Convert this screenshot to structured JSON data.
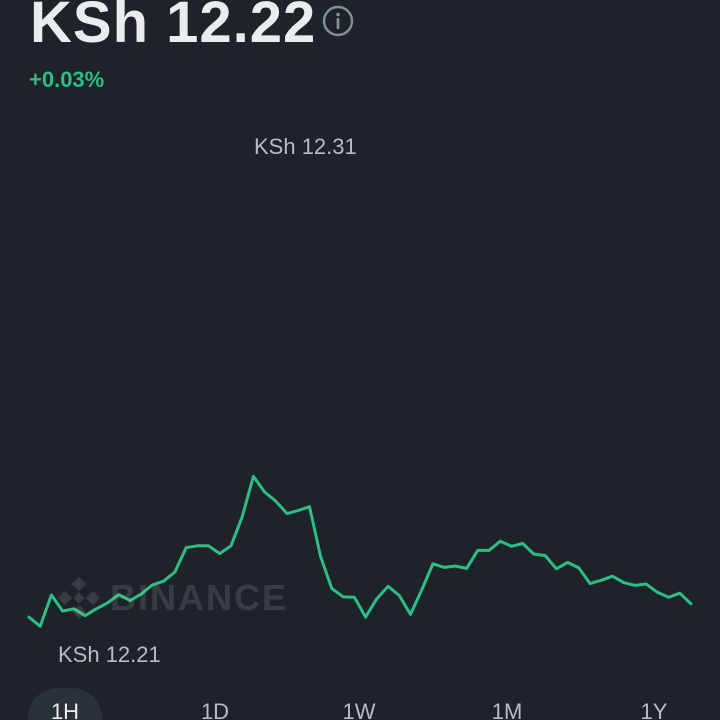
{
  "header": {
    "price": "KSh 12.22",
    "change": "+0.03%",
    "info_icon": "info-circle-icon"
  },
  "chart": {
    "high_label": "KSh 12.31",
    "low_label": "KSh 12.21",
    "watermark": "BINANCE",
    "line_color": "#2ebd85"
  },
  "chart_data": {
    "type": "line",
    "y": [
      12.2128,
      12.2108,
      12.2176,
      12.2141,
      12.2146,
      12.2131,
      12.2146,
      12.2159,
      12.2177,
      12.2164,
      12.2178,
      12.2198,
      12.2206,
      12.2226,
      12.2279,
      12.2283,
      12.2283,
      12.2266,
      12.2283,
      12.2346,
      12.2434,
      12.24,
      12.238,
      12.2353,
      12.236,
      12.2368,
      12.2259,
      12.219,
      12.2172,
      12.2171,
      12.2128,
      12.2168,
      12.2195,
      12.2175,
      12.2134,
      12.2187,
      12.2244,
      12.2236,
      12.2239,
      12.2234,
      12.2273,
      12.2273,
      12.2293,
      12.2282,
      12.2288,
      12.2265,
      12.2262,
      12.2233,
      12.2247,
      12.2235,
      12.2201,
      12.2208,
      12.2217,
      12.2203,
      12.2197,
      12.22,
      12.2182,
      12.2171,
      12.218,
      12.2157
    ],
    "ylim": [
      12.21,
      12.31
    ],
    "grid": false,
    "legend": "none"
  },
  "ranges": {
    "items": [
      {
        "label": "1H",
        "active": true
      },
      {
        "label": "1D",
        "active": false
      },
      {
        "label": "1W",
        "active": false
      },
      {
        "label": "1M",
        "active": false
      },
      {
        "label": "1Y",
        "active": false
      }
    ]
  }
}
